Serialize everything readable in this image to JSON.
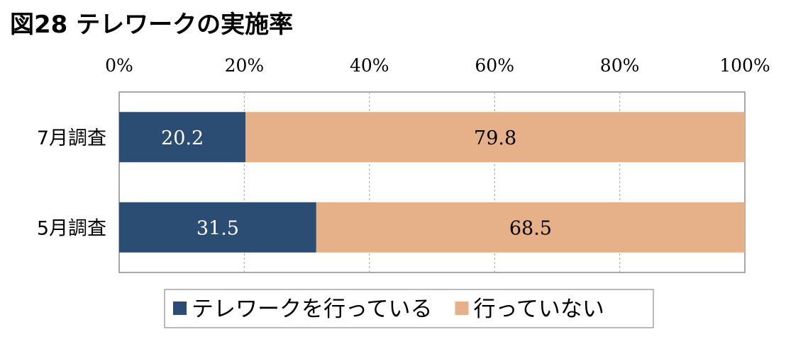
{
  "title": "図28 テレワークの実施率",
  "colors": {
    "teleworking": "#2b4c73",
    "not_teleworking": "#e6b089",
    "grid": "#b3b3b3",
    "frame": "#8c8c8c"
  },
  "chart_data": {
    "type": "bar",
    "orientation": "horizontal",
    "stacked": true,
    "percent_stacked": true,
    "categories": [
      "7月調査",
      "5月調査"
    ],
    "series": [
      {
        "name": "テレワークを行っている",
        "values": [
          20.2,
          31.5
        ],
        "labels": [
          "20.2",
          "31.5"
        ]
      },
      {
        "name": "行っていない",
        "values": [
          79.8,
          68.5
        ],
        "labels": [
          "79.8",
          "68.5"
        ]
      }
    ],
    "xlim": [
      0,
      100
    ],
    "xticks": [
      "0%",
      "20%",
      "40%",
      "60%",
      "80%",
      "100%"
    ],
    "xaxis_position": "top",
    "grid": true,
    "legend_position": "bottom"
  }
}
